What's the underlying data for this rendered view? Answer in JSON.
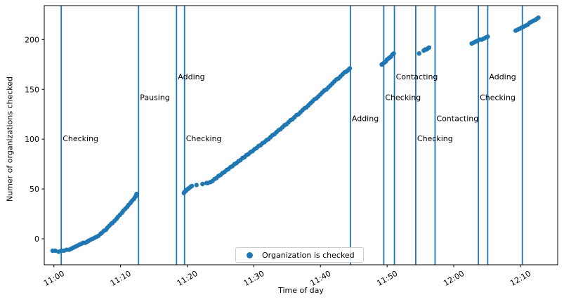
{
  "chart_data": {
    "type": "scatter",
    "title": "",
    "xlabel": "Time of day",
    "ylabel": "Numer of organizations checked",
    "legend": {
      "label": "Organization is checked",
      "position": "lower center"
    },
    "grid": false,
    "colors": {
      "accent": "#1f77b4",
      "spine": "#000000",
      "legend_border": "#cccccc"
    },
    "x_ticks": [
      "11:00",
      "11:10",
      "11:20",
      "11:30",
      "11:40",
      "11:50",
      "12:00",
      "12:10"
    ],
    "x_tick_minutes": [
      0,
      10,
      20,
      30,
      40,
      50,
      60,
      70
    ],
    "y_ticks": [
      0,
      50,
      100,
      150,
      200
    ],
    "xlim_minutes": [
      -1.45,
      75.6
    ],
    "ylim": [
      -26.1,
      234.1
    ],
    "x_tick_rotation_deg": 30,
    "vlines": [
      {
        "t": 1.1,
        "label": "Checking",
        "label_v": 101
      },
      {
        "t": 12.7,
        "label": "Pausing",
        "label_v": 142
      },
      {
        "t": 18.4,
        "label": "Adding",
        "label_v": 163
      },
      {
        "t": 19.6,
        "label": "Checking",
        "label_v": 101
      },
      {
        "t": 44.5,
        "label": "Adding",
        "label_v": 121
      },
      {
        "t": 49.5,
        "label": "Checking",
        "label_v": 142
      },
      {
        "t": 51.1,
        "label": "Contacting",
        "label_v": 163
      },
      {
        "t": 54.3,
        "label": "Checking",
        "label_v": 101
      },
      {
        "t": 57.2,
        "label": "Contacting",
        "label_v": 121
      },
      {
        "t": 63.7,
        "label": "Checking",
        "label_v": 142
      },
      {
        "t": 65.1,
        "label": "Adding",
        "label_v": 163
      },
      {
        "t": 70.3,
        "label": null,
        "label_v": null
      }
    ],
    "points": [
      [
        -0.2,
        -12
      ],
      [
        0.2,
        -12
      ],
      [
        0.7,
        -13
      ],
      [
        1.1,
        -12
      ],
      [
        1.5,
        -12
      ],
      [
        1.9,
        -11
      ],
      [
        2.3,
        -11
      ],
      [
        2.6,
        -10
      ],
      [
        2.9,
        -9
      ],
      [
        3.2,
        -8
      ],
      [
        3.5,
        -7
      ],
      [
        3.8,
        -6
      ],
      [
        4.1,
        -5
      ],
      [
        4.4,
        -4
      ],
      [
        4.7,
        -4
      ],
      [
        5.0,
        -3
      ],
      [
        5.2,
        -2
      ],
      [
        5.5,
        -1
      ],
      [
        5.8,
        0
      ],
      [
        6.1,
        1
      ],
      [
        6.4,
        2
      ],
      [
        6.7,
        3
      ],
      [
        7.0,
        5
      ],
      [
        7.2,
        6
      ],
      [
        7.5,
        8
      ],
      [
        7.8,
        9
      ],
      [
        8.0,
        11
      ],
      [
        8.3,
        13
      ],
      [
        8.6,
        15
      ],
      [
        8.8,
        16
      ],
      [
        9.1,
        18
      ],
      [
        9.4,
        20
      ],
      [
        9.6,
        22
      ],
      [
        9.9,
        24
      ],
      [
        10.2,
        26
      ],
      [
        10.4,
        28
      ],
      [
        10.7,
        30
      ],
      [
        11.0,
        32
      ],
      [
        11.2,
        34
      ],
      [
        11.5,
        36
      ],
      [
        11.7,
        38
      ],
      [
        12.0,
        40
      ],
      [
        12.2,
        42
      ],
      [
        12.3,
        43
      ],
      [
        12.4,
        45
      ],
      [
        19.5,
        46
      ],
      [
        19.6,
        47
      ],
      [
        19.8,
        48
      ],
      [
        19.9,
        49
      ],
      [
        20.1,
        50
      ],
      [
        20.3,
        51
      ],
      [
        20.5,
        52
      ],
      [
        20.7,
        53
      ],
      [
        21.4,
        54
      ],
      [
        22.3,
        55
      ],
      [
        22.9,
        56
      ],
      [
        23.1,
        56
      ],
      [
        23.5,
        57
      ],
      [
        23.8,
        58
      ],
      [
        24.1,
        60
      ],
      [
        24.4,
        61
      ],
      [
        24.7,
        63
      ],
      [
        25.0,
        64
      ],
      [
        25.3,
        66
      ],
      [
        25.6,
        67
      ],
      [
        25.9,
        69
      ],
      [
        26.2,
        70
      ],
      [
        26.5,
        72
      ],
      [
        26.8,
        73
      ],
      [
        27.1,
        75
      ],
      [
        27.4,
        76
      ],
      [
        27.7,
        78
      ],
      [
        28.0,
        79
      ],
      [
        28.3,
        81
      ],
      [
        28.6,
        82
      ],
      [
        28.9,
        84
      ],
      [
        29.2,
        85
      ],
      [
        29.5,
        87
      ],
      [
        29.8,
        88
      ],
      [
        30.1,
        90
      ],
      [
        30.4,
        91
      ],
      [
        30.7,
        93
      ],
      [
        31.0,
        94
      ],
      [
        31.3,
        96
      ],
      [
        31.6,
        97
      ],
      [
        31.9,
        99
      ],
      [
        32.2,
        100
      ],
      [
        32.5,
        102
      ],
      [
        32.8,
        104
      ],
      [
        33.1,
        105
      ],
      [
        33.4,
        107
      ],
      [
        33.7,
        109
      ],
      [
        34.0,
        110
      ],
      [
        34.3,
        112
      ],
      [
        34.6,
        114
      ],
      [
        34.9,
        115
      ],
      [
        35.2,
        117
      ],
      [
        35.5,
        119
      ],
      [
        35.8,
        120
      ],
      [
        36.1,
        122
      ],
      [
        36.4,
        124
      ],
      [
        36.7,
        125
      ],
      [
        37.0,
        127
      ],
      [
        37.3,
        129
      ],
      [
        37.6,
        131
      ],
      [
        37.9,
        132
      ],
      [
        38.2,
        134
      ],
      [
        38.5,
        136
      ],
      [
        38.8,
        138
      ],
      [
        39.1,
        140
      ],
      [
        39.4,
        141
      ],
      [
        39.7,
        143
      ],
      [
        40.0,
        145
      ],
      [
        40.3,
        147
      ],
      [
        40.6,
        149
      ],
      [
        40.9,
        150
      ],
      [
        41.2,
        152
      ],
      [
        41.5,
        154
      ],
      [
        41.8,
        156
      ],
      [
        42.1,
        158
      ],
      [
        42.4,
        160
      ],
      [
        42.7,
        161
      ],
      [
        43.0,
        163
      ],
      [
        43.3,
        165
      ],
      [
        43.6,
        167
      ],
      [
        43.9,
        168
      ],
      [
        44.1,
        169
      ],
      [
        44.3,
        170
      ],
      [
        44.4,
        171
      ],
      [
        49.2,
        175
      ],
      [
        49.4,
        176
      ],
      [
        49.6,
        177
      ],
      [
        49.8,
        178
      ],
      [
        50.0,
        180
      ],
      [
        50.2,
        181
      ],
      [
        50.4,
        182
      ],
      [
        50.6,
        183
      ],
      [
        50.8,
        185
      ],
      [
        51.0,
        186
      ],
      [
        54.8,
        186
      ],
      [
        55.5,
        189
      ],
      [
        55.7,
        190
      ],
      [
        55.9,
        190
      ],
      [
        56.1,
        191
      ],
      [
        56.3,
        192
      ],
      [
        62.7,
        196
      ],
      [
        63.0,
        197
      ],
      [
        63.3,
        198
      ],
      [
        63.6,
        199
      ],
      [
        63.9,
        200
      ],
      [
        64.2,
        200
      ],
      [
        64.5,
        201
      ],
      [
        64.8,
        202
      ],
      [
        65.1,
        203
      ],
      [
        69.3,
        209
      ],
      [
        69.6,
        210
      ],
      [
        69.9,
        211
      ],
      [
        70.2,
        212
      ],
      [
        70.5,
        213
      ],
      [
        70.8,
        214
      ],
      [
        71.1,
        215
      ],
      [
        71.4,
        217
      ],
      [
        71.7,
        218
      ],
      [
        72.0,
        219
      ],
      [
        72.3,
        220
      ],
      [
        72.5,
        221
      ],
      [
        72.7,
        222
      ]
    ]
  }
}
